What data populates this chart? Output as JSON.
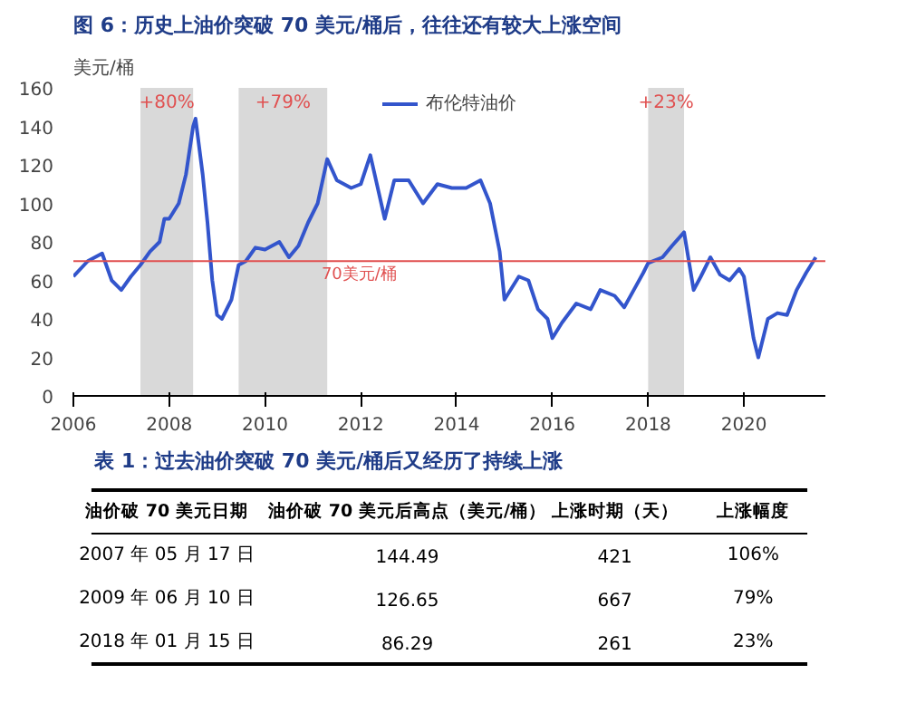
{
  "chart_data": {
    "type": "line",
    "title": "图 6：历史上油价突破 70 美元/桶后，往往还有较大上涨空间",
    "ylabel": "美元/桶",
    "xlim": [
      2006,
      2021.7
    ],
    "xticks": [
      2006,
      2008,
      2010,
      2012,
      2014,
      2016,
      2018,
      2020
    ],
    "ylim": [
      0,
      160
    ],
    "yticks": [
      0,
      20,
      40,
      60,
      80,
      100,
      120,
      140,
      160
    ],
    "grid": false,
    "legend": "top",
    "series": [
      {
        "name": "布伦特油价",
        "color": "#3355cc",
        "x": [
          2006.0,
          2006.3,
          2006.6,
          2006.8,
          2007.0,
          2007.2,
          2007.4,
          2007.6,
          2007.8,
          2007.9,
          2008.0,
          2008.2,
          2008.35,
          2008.5,
          2008.55,
          2008.7,
          2008.8,
          2008.9,
          2009.0,
          2009.1,
          2009.3,
          2009.45,
          2009.6,
          2009.8,
          2010.0,
          2010.3,
          2010.5,
          2010.7,
          2010.9,
          2011.1,
          2011.3,
          2011.5,
          2011.8,
          2012.0,
          2012.2,
          2012.5,
          2012.7,
          2013.0,
          2013.3,
          2013.6,
          2013.9,
          2014.2,
          2014.5,
          2014.7,
          2014.9,
          2015.0,
          2015.3,
          2015.5,
          2015.7,
          2015.9,
          2016.0,
          2016.2,
          2016.5,
          2016.8,
          2017.0,
          2017.3,
          2017.5,
          2017.7,
          2017.9,
          2018.0,
          2018.3,
          2018.5,
          2018.75,
          2018.95,
          2019.1,
          2019.3,
          2019.5,
          2019.7,
          2019.9,
          2020.0,
          2020.2,
          2020.3,
          2020.5,
          2020.7,
          2020.9,
          2021.1,
          2021.3,
          2021.5
        ],
        "values": [
          62,
          70,
          74,
          60,
          55,
          62,
          68,
          75,
          80,
          92,
          92,
          100,
          115,
          140,
          144,
          115,
          90,
          60,
          42,
          40,
          50,
          68,
          70,
          77,
          76,
          80,
          72,
          78,
          90,
          100,
          123,
          112,
          108,
          110,
          125,
          92,
          112,
          112,
          100,
          110,
          108,
          108,
          112,
          100,
          75,
          50,
          62,
          60,
          45,
          40,
          30,
          38,
          48,
          45,
          55,
          52,
          46,
          55,
          64,
          69,
          72,
          78,
          85,
          55,
          62,
          72,
          63,
          60,
          66,
          62,
          30,
          20,
          40,
          43,
          42,
          55,
          64,
          72
        ]
      }
    ],
    "ref_lines": [
      {
        "axis": "y",
        "value": 70,
        "label": "70美元/桶",
        "color": "#e05050"
      }
    ],
    "bands": [
      {
        "axis": "x",
        "from": 2007.4,
        "to": 2008.5,
        "label": "+80%",
        "color": "#d9d9d9"
      },
      {
        "axis": "x",
        "from": 2009.45,
        "to": 2011.3,
        "label": "+79%",
        "color": "#d9d9d9"
      },
      {
        "axis": "x",
        "from": 2018.0,
        "to": 2018.75,
        "label": "+23%",
        "color": "#d9d9d9"
      }
    ],
    "annotations": [
      "表 1：过去油价突破 70 美元/桶后又经历了持续上涨",
      "油价破 70 美元日期",
      "油价破 70 美元后高点（美元/桶）",
      "上涨时期（天）",
      "上涨幅度",
      "2007 年 05 月 17 日",
      "144.49",
      "421",
      "106%",
      "2009 年 06 月 10 日",
      "126.65",
      "667",
      "79%",
      "2018 年 01 月 15 日",
      "86.29",
      "261",
      "23%"
    ]
  }
}
